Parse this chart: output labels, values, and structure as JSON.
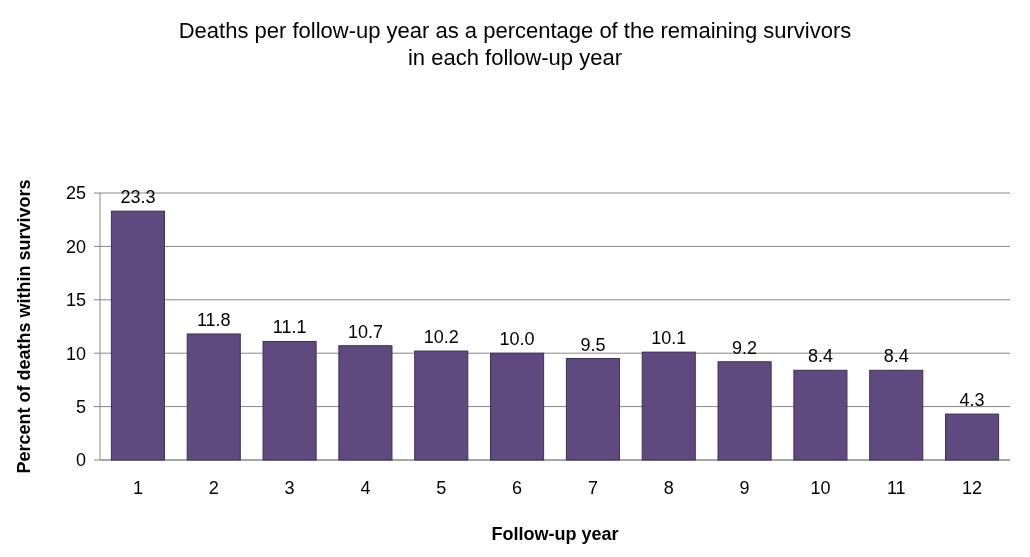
{
  "chart_data": {
    "type": "bar",
    "title": "Deaths per follow-up year as a percentage of the remaining survivors in each follow-up year",
    "xlabel": "Follow-up year",
    "ylabel": "Percent of deaths within survivors",
    "categories": [
      "1",
      "2",
      "3",
      "4",
      "5",
      "6",
      "7",
      "8",
      "9",
      "10",
      "11",
      "12"
    ],
    "values": [
      23.3,
      11.8,
      11.1,
      10.7,
      10.2,
      10.0,
      9.5,
      10.1,
      9.2,
      8.4,
      8.4,
      4.3
    ],
    "value_labels": [
      "23.3",
      "11.8",
      "11.1",
      "10.7",
      "10.2",
      "10.0",
      "9.5",
      "10.1",
      "9.2",
      "8.4",
      "8.4",
      "4.3"
    ],
    "color": "#5e4a7e",
    "ylim": [
      0,
      25
    ],
    "yticks": [
      0,
      5,
      10,
      15,
      20,
      25
    ],
    "grid": "y"
  }
}
